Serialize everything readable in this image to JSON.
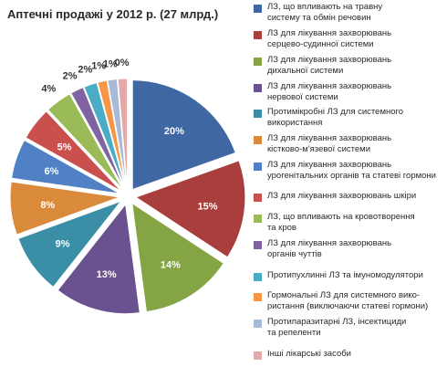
{
  "chart_data": {
    "type": "pie",
    "title": "Аптечні продажі у 2012 р. (27 млрд.)",
    "slice_label_format": "{value}%",
    "slices": [
      {
        "label": "ЛЗ, що впливають на травну\nсистему та обмін речовин",
        "value": 20,
        "color": "#3f67a3"
      },
      {
        "label": "ЛЗ для лікування захворювань\nсерцево-судинної системи",
        "value": 15,
        "color": "#a83f3c"
      },
      {
        "label": "ЛЗ для лікування захворювань\nдихальної системи",
        "value": 14,
        "color": "#85a545"
      },
      {
        "label": "ЛЗ для лікування захворювань\nнервової системи",
        "value": 13,
        "color": "#6a5290"
      },
      {
        "label": "Протимікробні ЛЗ для системного\nвикористання",
        "value": 9,
        "color": "#3a8fa6"
      },
      {
        "label": "ЛЗ для лікування захворювань\nкістково-м'язевої системи",
        "value": 8,
        "color": "#d98a3a"
      },
      {
        "label": "ЛЗ для лікування захворювань\nурогенітальних органів та статеві гормони",
        "value": 6,
        "color": "#4f81c4"
      },
      {
        "label": "ЛЗ для лікування захворювань шкіри",
        "value": 5,
        "color": "#c9504d"
      },
      {
        "label": "ЛЗ, що впливають на кровотворення\nта кров",
        "value": 4,
        "color": "#9bbb59"
      },
      {
        "label": "ЛЗ для лікування захворювань\nорганів чуттів",
        "value": 2,
        "color": "#8064a2"
      },
      {
        "label": "Протипухлинні ЛЗ та імуномодулятори",
        "value": 2,
        "color": "#4bacc6"
      },
      {
        "label": "Гормональні ЛЗ для системного вико-\nристання (виключаючи статеві гормони)",
        "value": 1,
        "color": "#f79646"
      },
      {
        "label": "Протипаразитарні ЛЗ, інсектициди\nта репеленти",
        "value": 1,
        "color": "#a9b9d8"
      },
      {
        "label": "Інші лікарські засоби",
        "value": 0,
        "color": "#e3a8a8"
      }
    ],
    "legend_position": "right"
  }
}
